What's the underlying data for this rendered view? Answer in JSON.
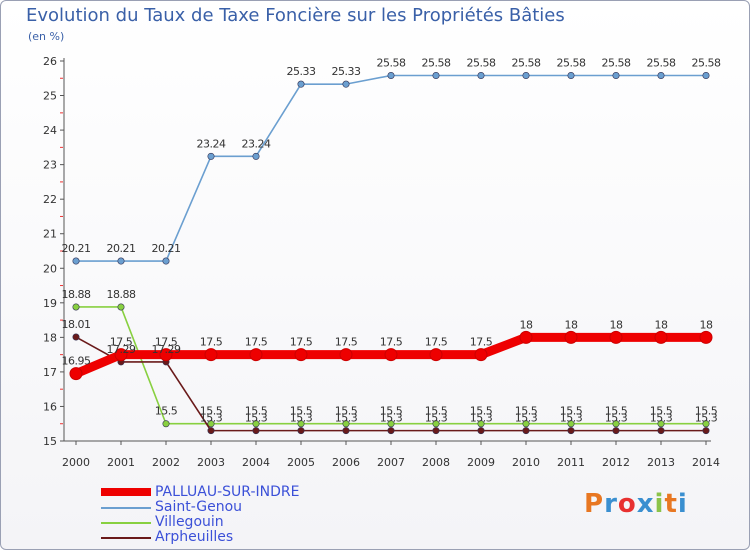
{
  "title": "Evolution du Taux de Taxe Foncière sur les Propriétés Bâties",
  "unit_label": "(en %)",
  "logo": {
    "text": "Proxiti",
    "colors": [
      "#e87722",
      "#3a8fd0",
      "#e83030",
      "#3a8fd0",
      "#8bc34a",
      "#e87722",
      "#3a8fd0"
    ]
  },
  "chart_data": {
    "type": "line",
    "title": "Evolution du Taux de Taxe Foncière sur les Propriétés Bâties",
    "ylabel": "(en %)",
    "xlabel": "",
    "ylim": [
      15,
      26
    ],
    "yticks": [
      15,
      16,
      17,
      18,
      19,
      20,
      21,
      22,
      23,
      24,
      25,
      26
    ],
    "categories": [
      "2000",
      "2001",
      "2002",
      "2003",
      "2004",
      "2005",
      "2006",
      "2007",
      "2008",
      "2009",
      "2010",
      "2011",
      "2012",
      "2013",
      "2014"
    ],
    "series": [
      {
        "name": "PALLUAU-SUR-INDRE",
        "color": "#ee0000",
        "values": [
          16.95,
          17.5,
          17.5,
          17.5,
          17.5,
          17.5,
          17.5,
          17.5,
          17.5,
          17.5,
          18,
          18,
          18,
          18,
          18
        ],
        "labels": [
          "16.95",
          "17.5",
          "17.5",
          "17.5",
          "17.5",
          "17.5",
          "17.5",
          "17.5",
          "17.5",
          "17.5",
          "18",
          "18",
          "18",
          "18",
          "18"
        ]
      },
      {
        "name": "Saint-Genou",
        "color": "#6b9fd0",
        "values": [
          20.21,
          20.21,
          20.21,
          23.24,
          23.24,
          25.33,
          25.33,
          25.58,
          25.58,
          25.58,
          25.58,
          25.58,
          25.58,
          25.58,
          25.58
        ],
        "labels": [
          "20.21",
          "20.21",
          "20.21",
          "23.24",
          "23.24",
          "25.33",
          "25.33",
          "25.58",
          "25.58",
          "25.58",
          "25.58",
          "25.58",
          "25.58",
          "25.58",
          "25.58"
        ]
      },
      {
        "name": "Villegouin",
        "color": "#88d040",
        "values": [
          18.88,
          18.88,
          15.5,
          15.5,
          15.5,
          15.5,
          15.5,
          15.5,
          15.5,
          15.5,
          15.5,
          15.5,
          15.5,
          15.5,
          15.5
        ],
        "labels": [
          "18.88",
          "18.88",
          "15.5",
          "15.5",
          "15.5",
          "15.5",
          "15.5",
          "15.5",
          "15.5",
          "15.5",
          "15.5",
          "15.5",
          "15.5",
          "15.5",
          "15.5"
        ]
      },
      {
        "name": "Arpheuilles",
        "color": "#6a1a1a",
        "values": [
          18.01,
          17.29,
          17.29,
          15.3,
          15.3,
          15.3,
          15.3,
          15.3,
          15.3,
          15.3,
          15.3,
          15.3,
          15.3,
          15.3,
          15.3
        ],
        "labels": [
          "18.01",
          "17.29",
          "17.29",
          "15.3",
          "15.3",
          "15.3",
          "15.3",
          "15.3",
          "15.3",
          "15.3",
          "15.3",
          "15.3",
          "15.3",
          "15.3",
          "15.3"
        ]
      }
    ],
    "legend_position": "bottom-left",
    "grid": false
  }
}
